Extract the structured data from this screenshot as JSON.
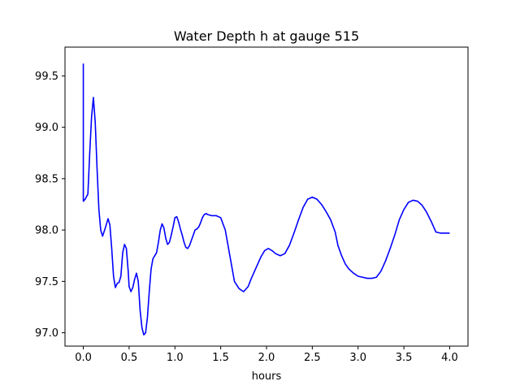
{
  "chart_data": {
    "type": "line",
    "title": "Water Depth h at gauge 515",
    "xlabel": "hours",
    "ylabel": "",
    "xlim": [
      -0.2,
      4.2
    ],
    "ylim": [
      96.87,
      99.78
    ],
    "xticks": [
      0.0,
      0.5,
      1.0,
      1.5,
      2.0,
      2.5,
      3.0,
      3.5,
      4.0
    ],
    "xtick_labels": [
      "0.0",
      "0.5",
      "1.0",
      "1.5",
      "2.0",
      "2.5",
      "3.0",
      "3.5",
      "4.0"
    ],
    "yticks": [
      97.0,
      97.5,
      98.0,
      98.5,
      99.0,
      99.5
    ],
    "ytick_labels": [
      "97.0",
      "97.5",
      "98.0",
      "98.5",
      "99.0",
      "99.5"
    ],
    "grid": false,
    "legend": "none",
    "series": [
      {
        "color": "#0000ff",
        "x": [
          0.0,
          0.0,
          0.02,
          0.05,
          0.07,
          0.09,
          0.11,
          0.13,
          0.15,
          0.17,
          0.19,
          0.21,
          0.24,
          0.27,
          0.29,
          0.31,
          0.33,
          0.35,
          0.37,
          0.39,
          0.41,
          0.43,
          0.45,
          0.47,
          0.49,
          0.5,
          0.52,
          0.54,
          0.56,
          0.58,
          0.6,
          0.62,
          0.64,
          0.66,
          0.68,
          0.7,
          0.72,
          0.74,
          0.76,
          0.78,
          0.8,
          0.82,
          0.84,
          0.86,
          0.88,
          0.9,
          0.92,
          0.94,
          0.96,
          0.98,
          1.0,
          1.02,
          1.04,
          1.06,
          1.08,
          1.1,
          1.12,
          1.14,
          1.16,
          1.18,
          1.2,
          1.22,
          1.24,
          1.26,
          1.28,
          1.3,
          1.32,
          1.34,
          1.36,
          1.4,
          1.45,
          1.5,
          1.55,
          1.6,
          1.65,
          1.7,
          1.75,
          1.8,
          1.83,
          1.86,
          1.9,
          1.94,
          1.98,
          2.02,
          2.06,
          2.1,
          2.15,
          2.2,
          2.25,
          2.3,
          2.35,
          2.4,
          2.45,
          2.5,
          2.55,
          2.6,
          2.65,
          2.7,
          2.75,
          2.78,
          2.82,
          2.86,
          2.9,
          2.95,
          3.0,
          3.05,
          3.1,
          3.15,
          3.2,
          3.25,
          3.3,
          3.35,
          3.4,
          3.45,
          3.5,
          3.55,
          3.6,
          3.65,
          3.7,
          3.75,
          3.8,
          3.85,
          3.9,
          3.95,
          4.0
        ],
        "y": [
          99.62,
          98.28,
          98.3,
          98.35,
          98.75,
          99.1,
          99.29,
          99.05,
          98.6,
          98.2,
          98.0,
          97.94,
          98.02,
          98.11,
          98.05,
          97.82,
          97.55,
          97.44,
          97.48,
          97.49,
          97.55,
          97.78,
          97.86,
          97.82,
          97.6,
          97.45,
          97.4,
          97.44,
          97.52,
          97.58,
          97.5,
          97.22,
          97.05,
          96.98,
          97.0,
          97.15,
          97.4,
          97.62,
          97.72,
          97.75,
          97.78,
          97.88,
          98.0,
          98.06,
          98.02,
          97.92,
          97.86,
          97.88,
          97.95,
          98.03,
          98.12,
          98.13,
          98.08,
          98.01,
          97.95,
          97.88,
          97.83,
          97.82,
          97.85,
          97.9,
          97.95,
          98.0,
          98.01,
          98.03,
          98.07,
          98.12,
          98.15,
          98.16,
          98.15,
          98.14,
          98.14,
          98.12,
          98.0,
          97.75,
          97.5,
          97.43,
          97.4,
          97.45,
          97.52,
          97.58,
          97.66,
          97.74,
          97.8,
          97.82,
          97.8,
          97.77,
          97.75,
          97.77,
          97.85,
          97.97,
          98.1,
          98.22,
          98.3,
          98.32,
          98.3,
          98.25,
          98.18,
          98.1,
          97.98,
          97.85,
          97.75,
          97.67,
          97.62,
          97.58,
          97.55,
          97.54,
          97.53,
          97.53,
          97.54,
          97.6,
          97.7,
          97.82,
          97.95,
          98.1,
          98.2,
          98.27,
          98.29,
          98.28,
          98.24,
          98.17,
          98.08,
          97.98,
          97.97,
          97.97,
          97.97
        ]
      }
    ]
  }
}
